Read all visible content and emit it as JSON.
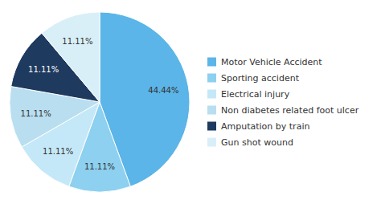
{
  "chart_data": {
    "type": "pie",
    "categories": [
      "Motor Vehicle Accident",
      "Sporting accident",
      "Electrical injury",
      "Non diabetes related foot ulcer",
      "Amputation by train",
      "Gun shot wound"
    ],
    "values": [
      44.44,
      11.11,
      11.11,
      11.11,
      11.11,
      11.11
    ],
    "value_labels": [
      "44.44%",
      "11.11%",
      "11.11%",
      "11.11%",
      "11.11%",
      "11.11%"
    ],
    "colors": [
      "#5BB5E8",
      "#8DD0F0",
      "#C5E8F8",
      "#B8DEF0",
      "#1E3A5F",
      "#D8EFF8"
    ],
    "data_labels": true,
    "legend": "right"
  }
}
